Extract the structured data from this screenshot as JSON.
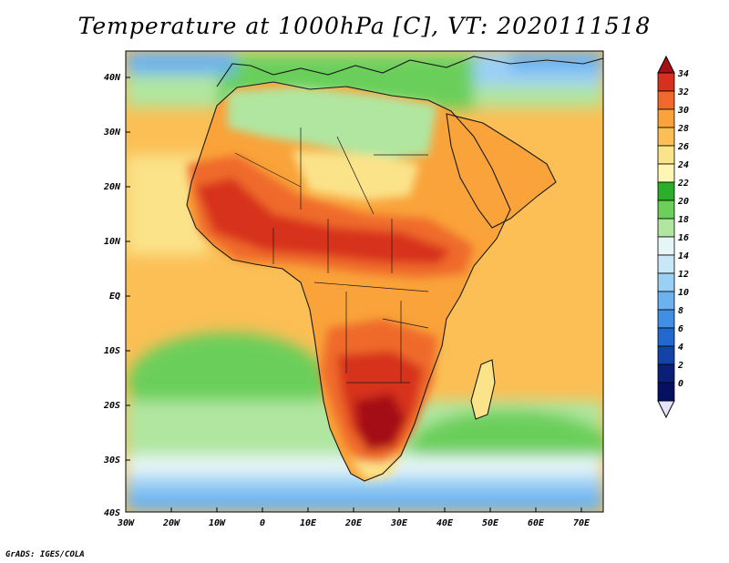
{
  "title": "Temperature at 1000hPa [C], VT: 2020111518",
  "credit": "GrADS: IGES/COLA",
  "lat_labels": [
    "40N",
    "30N",
    "20N",
    "10N",
    "EQ",
    "10S",
    "20S",
    "30S",
    "40S"
  ],
  "lon_labels": [
    "30W",
    "20W",
    "10W",
    "0",
    "10E",
    "20E",
    "30E",
    "40E",
    "50E",
    "60E",
    "70E"
  ],
  "colorbar": {
    "labels": [
      "34",
      "32",
      "30",
      "28",
      "26",
      "24",
      "22",
      "20",
      "18",
      "16",
      "14",
      "12",
      "10",
      "8",
      "6",
      "4",
      "2",
      "0"
    ],
    "colors": [
      "#a50f15",
      "#d7301f",
      "#ef6a2a",
      "#f9a33a",
      "#fbbf55",
      "#fbe38a",
      "#fef6b2",
      "#2cae2c",
      "#6bcf5a",
      "#b0e6a0",
      "#e6f6f6",
      "#c8e8f8",
      "#9bd0f5",
      "#6cb2ef",
      "#3f8fe2",
      "#2169cf",
      "#1443a8",
      "#0a1f78",
      "#061060"
    ],
    "end_low_color": "#e6e2f7"
  },
  "map_colors": {
    "ocean_base": "#fbbf55",
    "land_hot": "#f9a33a",
    "very_hot": "#ef6a2a",
    "hottest": "#d7301f",
    "extreme": "#a50f15",
    "mild": "#fbe38a",
    "cool_green": "#6bcf5a",
    "light_green": "#b0e6a0",
    "pale": "#e6f6f6",
    "light_blue": "#9bd0f5",
    "blue": "#6cb2ef",
    "deep_blue": "#3f8fe2",
    "coast": "#1a1a1a"
  }
}
